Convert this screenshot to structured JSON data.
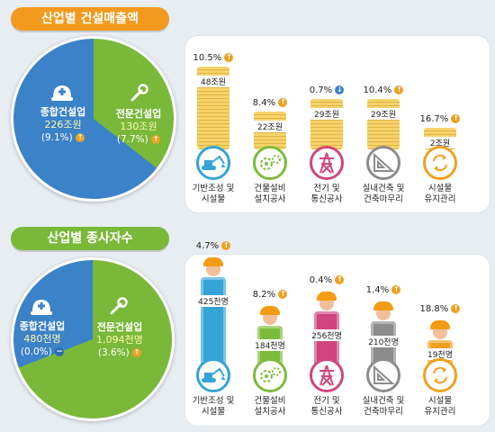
{
  "revenue": {
    "title": "산업별 건설매출액",
    "general": {
      "name": "종합건설업",
      "value": "226조원",
      "change": "(9.1%)"
    },
    "specialty": {
      "name": "전문건설업",
      "value": "130조원",
      "change": "(7.7%)"
    }
  },
  "employees": {
    "title": "산업별 종사자수",
    "general": {
      "name": "종합건설업",
      "value": "480천명",
      "change": "(0.0%)"
    },
    "specialty": {
      "name": "전문건설업",
      "value": "1,094천명",
      "change": "(3.6%)"
    }
  },
  "categories": [
    {
      "line1": "기반조성 및",
      "line2": "시설물",
      "icon": "excavator-icon",
      "color": "#35a3d8"
    },
    {
      "line1": "건물설비",
      "line2": "설치공사",
      "icon": "gears-icon",
      "color": "#7dbb3c"
    },
    {
      "line1": "전기 및",
      "line2": "통신공사",
      "icon": "power-tower-icon",
      "color": "#d0457e"
    },
    {
      "line1": "실내건축 및",
      "line2": "건축마무리",
      "icon": "triangle-ruler-icon",
      "color": "#8c8c8c"
    },
    {
      "line1": "시설물",
      "line2": "유지관리",
      "icon": "recycle-icon",
      "color": "#f0a020"
    }
  ],
  "chart_data": [
    {
      "type": "bar",
      "title": "산업별 건설매출액",
      "categories": [
        "기반조성 및 시설물",
        "건물설비 설치공사",
        "전기 및 통신공사",
        "실내건축 및 건축마무리",
        "시설물 유지관리"
      ],
      "values": [
        48,
        22,
        29,
        29,
        2
      ],
      "value_labels": [
        "48조원",
        "22조원",
        "29조원",
        "29조원",
        "2조원"
      ],
      "changes": [
        "10.5%",
        "8.4%",
        "0.7%",
        "10.4%",
        "16.7%"
      ],
      "change_direction": [
        "up",
        "up",
        "down",
        "up",
        "up"
      ]
    },
    {
      "type": "bar",
      "title": "산업별 종사자수",
      "categories": [
        "기반조성 및 시설물",
        "건물설비 설치공사",
        "전기 및 통신공사",
        "실내건축 및 건축마무리",
        "시설물 유지관리"
      ],
      "values": [
        425,
        184,
        256,
        210,
        19
      ],
      "value_labels": [
        "425천명",
        "184천명",
        "256천명",
        "210천명",
        "19천명"
      ],
      "changes": [
        "4.7%",
        "8.2%",
        "0.4%",
        "1.4%",
        "18.8%"
      ],
      "change_direction": [
        "up",
        "up",
        "up",
        "up",
        "up"
      ]
    }
  ],
  "colors": {
    "blue": "#3b82c8",
    "green": "#7ab839",
    "orange": "#f0a020",
    "title_orange": "#f39a1e",
    "title_green": "#7ab83a"
  }
}
